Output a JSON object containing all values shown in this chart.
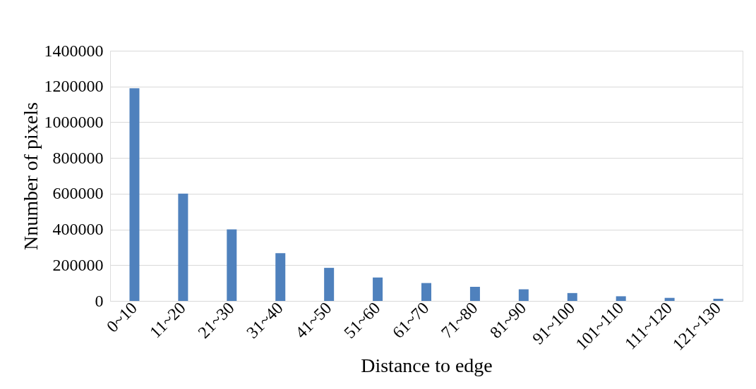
{
  "chart_data": {
    "type": "bar",
    "xlabel": "Distance to edge",
    "ylabel": "Nnumber of  pixels",
    "categories": [
      "0~10",
      "11~20",
      "21~30",
      "31~40",
      "41~50",
      "51~60",
      "61~70",
      "71~80",
      "81~90",
      "91~100",
      "101~110",
      "111~120",
      "121~130"
    ],
    "values": [
      1190000,
      600000,
      400000,
      267000,
      185000,
      131000,
      100000,
      79000,
      65000,
      44000,
      26000,
      17000,
      12000
    ],
    "color": "#4f81bd",
    "ylim": [
      0,
      1400000
    ],
    "yticks": [
      0,
      200000,
      400000,
      600000,
      800000,
      1000000,
      1200000,
      1400000
    ],
    "grid": "y"
  }
}
